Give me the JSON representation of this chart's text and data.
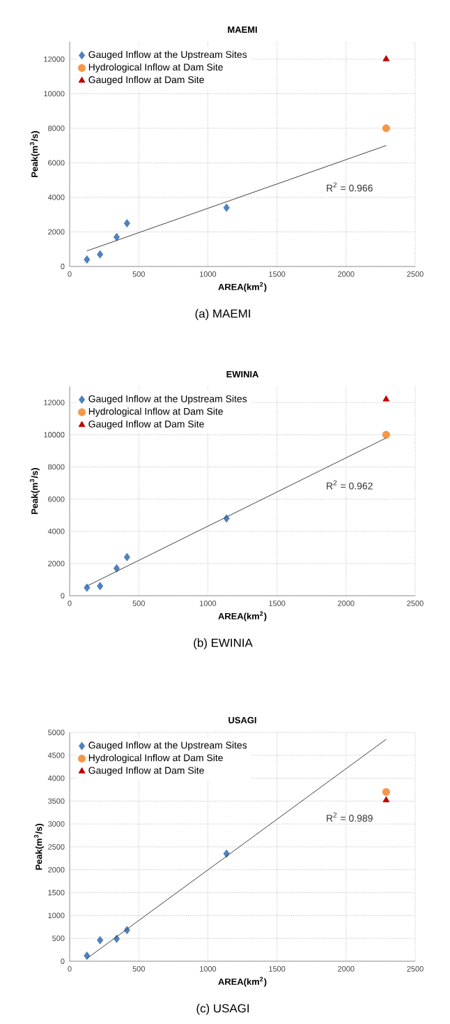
{
  "chart_data": [
    {
      "type": "scatter",
      "title": "MAEMI",
      "xlabel": "AREA(km$^{2}$)",
      "ylabel": "Peak(m$^{3}$/s)",
      "xlim": [
        0,
        2500
      ],
      "xticks": [
        0,
        500,
        1000,
        1500,
        2000,
        2500
      ],
      "ylim": [
        0,
        13000
      ],
      "yticks": [
        0,
        2000,
        4000,
        6000,
        8000,
        10000,
        12000
      ],
      "grid": true,
      "legend": "top left",
      "series": [
        {
          "name": "Gauged Inflow at the Upstream Sites",
          "color": "#4f81bd",
          "marker": "diamond",
          "x": [
            125,
            220,
            340,
            415,
            1135
          ],
          "values": [
            400,
            700,
            1700,
            2500,
            3400
          ]
        },
        {
          "name": "Hydrological Inflow at Dam Site",
          "color": "#f79646",
          "marker": "circle",
          "x": [
            2290
          ],
          "values": [
            8000
          ]
        },
        {
          "name": "Gauged Inflow at Dam Site",
          "color": "#c00000",
          "marker": "triangle",
          "x": [
            2290
          ],
          "values": [
            12000
          ]
        },
        {
          "type": "line",
          "color": "#404040",
          "x": [
            125,
            2290
          ],
          "values": [
            900,
            7000
          ]
        }
      ],
      "annotations": [
        "R$^{2}$ = 0.966",
        "(a) MAEMI"
      ]
    },
    {
      "type": "scatter",
      "title": "EWINIA",
      "xlabel": "AREA(km$^{2}$)",
      "ylabel": "Peak(m$^{3}$/s)",
      "xlim": [
        0,
        2500
      ],
      "xticks": [
        0,
        500,
        1000,
        1500,
        2000,
        2500
      ],
      "ylim": [
        0,
        13000
      ],
      "yticks": [
        0,
        2000,
        4000,
        6000,
        8000,
        10000,
        12000
      ],
      "grid": true,
      "legend": "top left",
      "series": [
        {
          "name": "Gauged Inflow at the Upstream Sites",
          "color": "#4f81bd",
          "marker": "diamond",
          "x": [
            125,
            220,
            340,
            415,
            1135
          ],
          "values": [
            500,
            600,
            1700,
            2400,
            4800
          ]
        },
        {
          "name": "Hydrological Inflow at Dam Site",
          "color": "#f79646",
          "marker": "circle",
          "x": [
            2290
          ],
          "values": [
            10000
          ]
        },
        {
          "name": "Gauged Inflow at Dam Site",
          "color": "#c00000",
          "marker": "triangle",
          "x": [
            2290
          ],
          "values": [
            12200
          ]
        },
        {
          "type": "line",
          "color": "#404040",
          "x": [
            125,
            2290
          ],
          "values": [
            600,
            9800
          ]
        }
      ],
      "annotations": [
        "R$^{2}$ = 0.962",
        "(b) EWINIA"
      ]
    },
    {
      "type": "scatter",
      "title": "USAGI",
      "xlabel": "AREA(km$^{2}$)",
      "ylabel": "Peak(m$^{3}$/s)",
      "xlim": [
        0,
        2500
      ],
      "xticks": [
        0,
        500,
        1000,
        1500,
        2000,
        2500
      ],
      "ylim": [
        0,
        5000
      ],
      "yticks": [
        0,
        500,
        1000,
        1500,
        2000,
        2500,
        3000,
        3500,
        4000,
        4500,
        5000
      ],
      "grid": true,
      "legend": "top left",
      "series": [
        {
          "name": "Gauged Inflow at the Upstream Sites",
          "color": "#4f81bd",
          "marker": "diamond",
          "x": [
            125,
            220,
            340,
            415,
            1135
          ],
          "values": [
            120,
            460,
            490,
            680,
            2350
          ]
        },
        {
          "name": "Hydrological Inflow at Dam Site",
          "color": "#f79646",
          "marker": "circle",
          "x": [
            2290
          ],
          "values": [
            3700
          ]
        },
        {
          "name": "Gauged Inflow at Dam Site",
          "color": "#c00000",
          "marker": "triangle",
          "x": [
            2290
          ],
          "values": [
            3520
          ]
        },
        {
          "type": "line",
          "color": "#404040",
          "x": [
            125,
            2290
          ],
          "values": [
            60,
            4850
          ]
        }
      ],
      "annotations": [
        "R$^{2}$ = 0.989",
        "(c) USAGI"
      ]
    }
  ]
}
